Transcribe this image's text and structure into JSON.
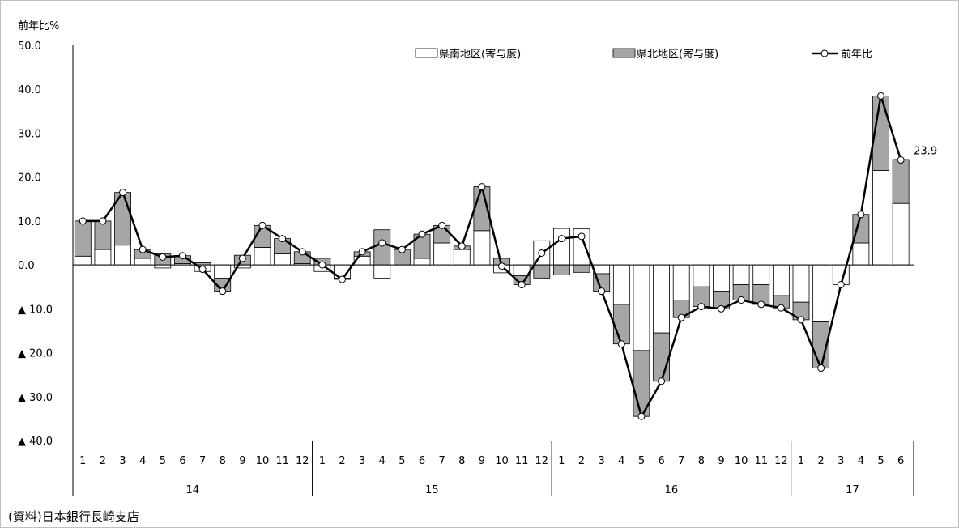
{
  "source_note": "(資料)日本銀行長崎支店",
  "chart_data": {
    "type": "bar",
    "ylabel": "前年比%",
    "ylim": [
      -40,
      50
    ],
    "yticks": [
      {
        "value": 50,
        "label": "50.0"
      },
      {
        "value": 40,
        "label": "40.0"
      },
      {
        "value": 30,
        "label": "30.0"
      },
      {
        "value": 20,
        "label": "20.0"
      },
      {
        "value": 10,
        "label": "10.0"
      },
      {
        "value": 0,
        "label": "0.0"
      },
      {
        "value": -10,
        "label": "▲ 10.0"
      },
      {
        "value": -20,
        "label": "▲ 20.0"
      },
      {
        "value": -30,
        "label": "▲ 30.0"
      },
      {
        "value": -40,
        "label": "▲ 40.0"
      }
    ],
    "months": [
      "1",
      "2",
      "3",
      "4",
      "5",
      "6",
      "7",
      "8",
      "9",
      "10",
      "11",
      "12",
      "1",
      "2",
      "3",
      "4",
      "5",
      "6",
      "7",
      "8",
      "9",
      "10",
      "11",
      "12",
      "1",
      "2",
      "3",
      "4",
      "5",
      "6",
      "7",
      "8",
      "9",
      "10",
      "11",
      "12",
      "1",
      "2",
      "3",
      "4",
      "5",
      "6"
    ],
    "years": [
      {
        "label": "14",
        "count": 12
      },
      {
        "label": "15",
        "count": 12
      },
      {
        "label": "16",
        "count": 12
      },
      {
        "label": "17",
        "count": 6
      }
    ],
    "legend": [
      "県南地区(寄与度)",
      "県北地区(寄与度)",
      "前年比"
    ],
    "series": [
      {
        "name": "県南地区(寄与度)",
        "type": "stacked-bar",
        "color": "#ffffff",
        "values": [
          2.0,
          3.5,
          4.5,
          1.5,
          -0.7,
          0.3,
          -1.5,
          -3.0,
          -0.7,
          4.0,
          2.5,
          0.3,
          -1.5,
          -3.0,
          2.0,
          -3.0,
          0.0,
          1.5,
          5.0,
          3.5,
          7.8,
          -1.8,
          -2.5,
          5.5,
          8.3,
          8.2,
          -2.0,
          -9.0,
          -19.5,
          -15.5,
          -8.0,
          -5.0,
          -6.0,
          -4.5,
          -4.5,
          -7.0,
          -8.5,
          -13.0,
          -4.5,
          5.0,
          21.5,
          14.0
        ]
      },
      {
        "name": "県北地区(寄与度)",
        "type": "stacked-bar",
        "color": "#a6a6a6",
        "values": [
          8.0,
          6.5,
          12.0,
          2.0,
          2.5,
          1.8,
          0.5,
          -3.0,
          2.2,
          5.0,
          3.5,
          2.7,
          1.5,
          -0.3,
          1.0,
          8.0,
          3.5,
          5.5,
          4.0,
          0.8,
          10.0,
          1.5,
          -2.0,
          -3.0,
          -2.3,
          -1.7,
          -4.0,
          -9.0,
          -15.0,
          -11.0,
          -4.0,
          -4.5,
          -4.0,
          -3.5,
          -4.5,
          -2.8,
          -4.0,
          -10.5,
          0.0,
          6.5,
          17.0,
          10.0
        ]
      },
      {
        "name": "前年比",
        "type": "line",
        "color": "#000000",
        "values": [
          10.0,
          10.0,
          16.5,
          3.5,
          1.8,
          2.1,
          -1.0,
          -6.0,
          1.5,
          9.0,
          6.0,
          3.0,
          0.0,
          -3.3,
          3.0,
          5.0,
          3.5,
          7.0,
          9.0,
          4.3,
          17.8,
          -0.3,
          -4.5,
          2.7,
          6.0,
          6.5,
          -6.0,
          -18.0,
          -34.5,
          -26.5,
          -12.0,
          -9.5,
          -10.0,
          -8.0,
          -9.0,
          -9.8,
          -12.5,
          -23.5,
          -4.5,
          11.5,
          38.5,
          23.9
        ]
      }
    ],
    "data_labels": [
      {
        "series": "前年比",
        "index": 41,
        "text": "23.9"
      }
    ],
    "grid": false,
    "legend_position": "top"
  }
}
